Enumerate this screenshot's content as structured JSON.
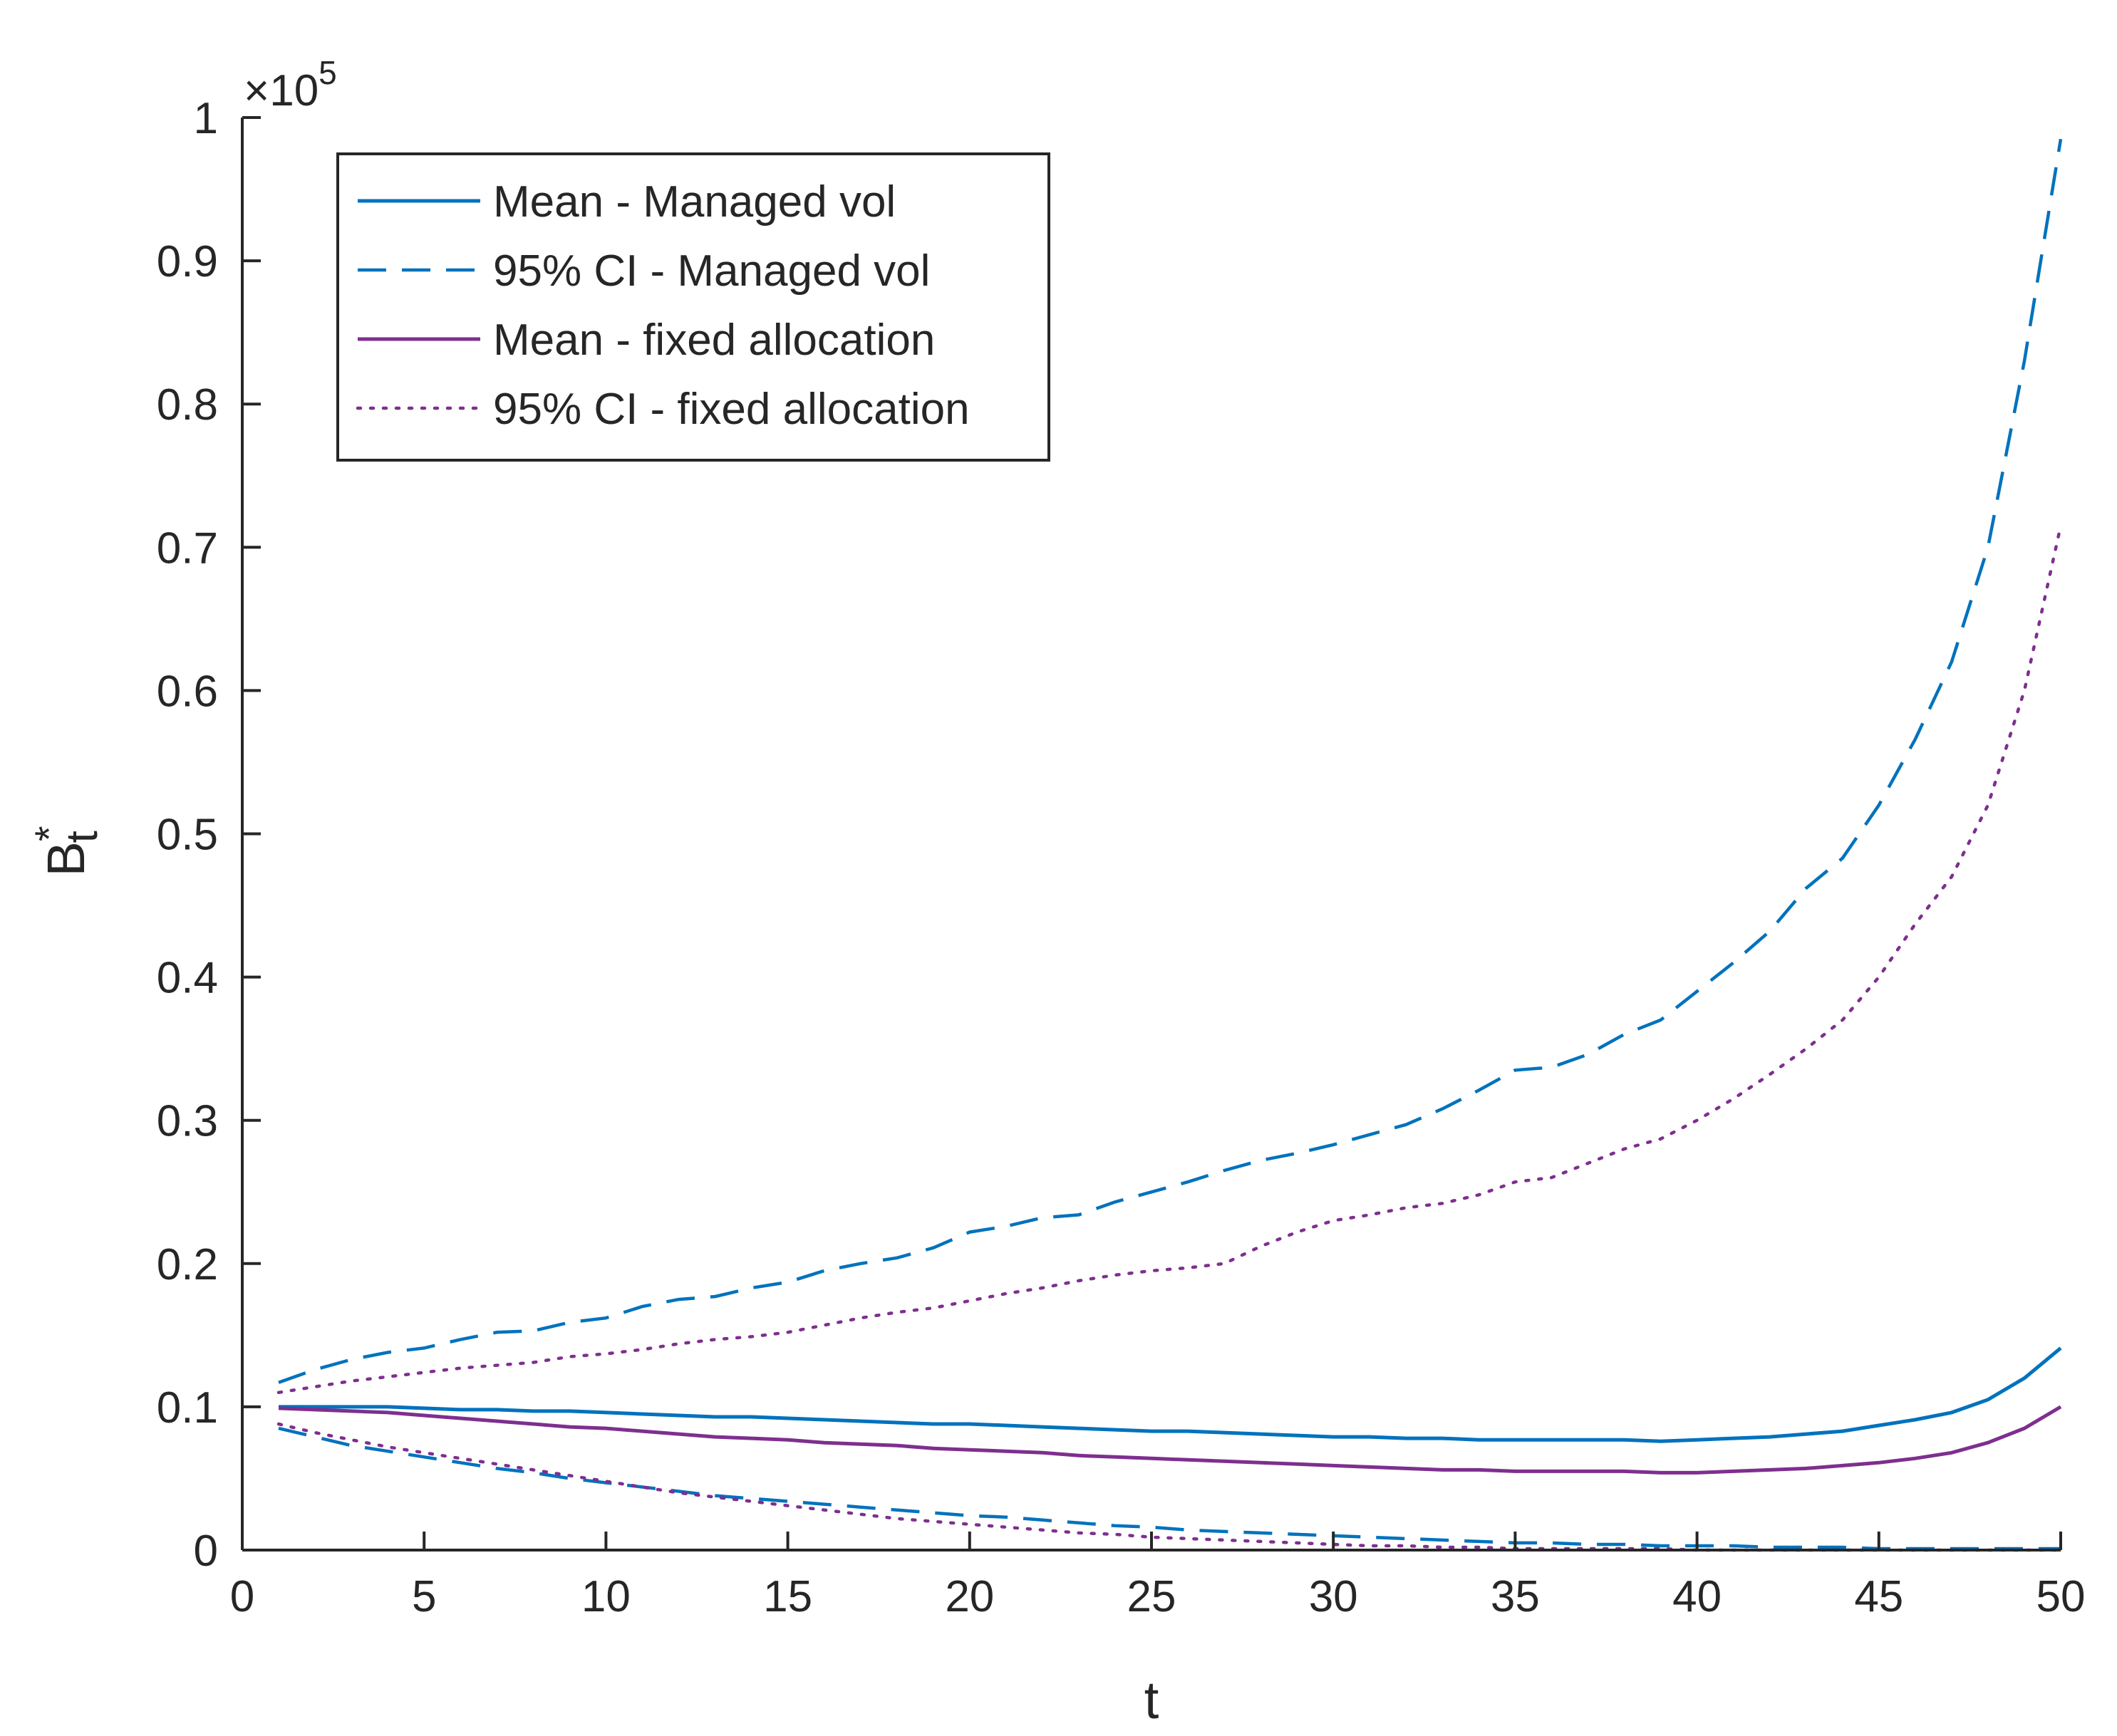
{
  "chart_data": {
    "type": "line",
    "title": "",
    "xlabel": "t",
    "ylabel": "B",
    "ylabel_superscript": "*",
    "ylabel_subscript": "t",
    "y_exponent": {
      "times": "×10",
      "power": "5"
    },
    "xlim": [
      0,
      50
    ],
    "ylim": [
      0,
      1
    ],
    "x_ticks": [
      0,
      5,
      10,
      15,
      20,
      25,
      30,
      35,
      40,
      45,
      50
    ],
    "x_tick_labels": [
      "0",
      "5",
      "10",
      "15",
      "20",
      "25",
      "30",
      "35",
      "40",
      "45",
      "50"
    ],
    "y_ticks": [
      0,
      0.1,
      0.2,
      0.3,
      0.4,
      0.5,
      0.6,
      0.7,
      0.8,
      0.9,
      1
    ],
    "y_tick_labels": [
      "0",
      "0.1",
      "0.2",
      "0.3",
      "0.4",
      "0.5",
      "0.6",
      "0.7",
      "0.8",
      "0.9",
      "1"
    ],
    "grid": false,
    "legend_position": "top-left",
    "x": [
      1,
      2,
      3,
      4,
      5,
      6,
      7,
      8,
      9,
      10,
      11,
      12,
      13,
      14,
      15,
      16,
      17,
      18,
      19,
      20,
      21,
      22,
      23,
      24,
      25,
      26,
      27,
      28,
      29,
      30,
      31,
      32,
      33,
      34,
      35,
      36,
      37,
      38,
      39,
      40,
      41,
      42,
      43,
      44,
      45,
      46,
      47,
      48,
      49,
      50
    ],
    "series": [
      {
        "name": "Mean - Managed vol",
        "color": "#0072BD",
        "style": "solid",
        "values": [
          0.1,
          0.1,
          0.1,
          0.1,
          0.099,
          0.098,
          0.098,
          0.097,
          0.097,
          0.096,
          0.095,
          0.094,
          0.093,
          0.093,
          0.092,
          0.091,
          0.09,
          0.089,
          0.088,
          0.088,
          0.087,
          0.086,
          0.085,
          0.084,
          0.083,
          0.083,
          0.082,
          0.081,
          0.08,
          0.079,
          0.079,
          0.078,
          0.078,
          0.077,
          0.077,
          0.077,
          0.077,
          0.077,
          0.076,
          0.077,
          0.078,
          0.079,
          0.081,
          0.083,
          0.087,
          0.091,
          0.096,
          0.105,
          0.12,
          0.141
        ]
      },
      {
        "name": "95% CI - Managed vol",
        "color": "#0072BD",
        "style": "dashed",
        "values": [
          0.117,
          0.126,
          0.133,
          0.138,
          0.141,
          0.147,
          0.152,
          0.153,
          0.159,
          0.162,
          0.17,
          0.175,
          0.177,
          0.183,
          0.187,
          0.195,
          0.2,
          0.204,
          0.211,
          0.222,
          0.226,
          0.232,
          0.234,
          0.243,
          0.25,
          0.257,
          0.265,
          0.272,
          0.277,
          0.283,
          0.29,
          0.297,
          0.308,
          0.321,
          0.335,
          0.337,
          0.346,
          0.36,
          0.37,
          0.39,
          0.41,
          0.432,
          0.462,
          0.483,
          0.52,
          0.566,
          0.62,
          0.7,
          0.83,
          0.985
        ]
      },
      {
        "name": "Mean - fixed allocation",
        "color": "#7E2F8E",
        "style": "solid",
        "values": [
          0.099,
          0.098,
          0.097,
          0.096,
          0.094,
          0.092,
          0.09,
          0.088,
          0.086,
          0.085,
          0.083,
          0.081,
          0.079,
          0.078,
          0.077,
          0.075,
          0.074,
          0.073,
          0.071,
          0.07,
          0.069,
          0.068,
          0.066,
          0.065,
          0.064,
          0.063,
          0.062,
          0.061,
          0.06,
          0.059,
          0.058,
          0.057,
          0.056,
          0.056,
          0.055,
          0.055,
          0.055,
          0.055,
          0.054,
          0.054,
          0.055,
          0.056,
          0.057,
          0.059,
          0.061,
          0.064,
          0.068,
          0.075,
          0.085,
          0.1
        ]
      },
      {
        "name": "95% CI - fixed allocation",
        "color": "#7E2F8E",
        "style": "dotted",
        "values": [
          0.11,
          0.114,
          0.118,
          0.121,
          0.124,
          0.127,
          0.129,
          0.131,
          0.135,
          0.137,
          0.14,
          0.144,
          0.147,
          0.149,
          0.152,
          0.157,
          0.162,
          0.166,
          0.169,
          0.174,
          0.179,
          0.183,
          0.188,
          0.192,
          0.195,
          0.197,
          0.2,
          0.212,
          0.222,
          0.23,
          0.234,
          0.239,
          0.242,
          0.248,
          0.257,
          0.26,
          0.27,
          0.28,
          0.287,
          0.3,
          0.315,
          0.332,
          0.35,
          0.37,
          0.4,
          0.437,
          0.47,
          0.52,
          0.6,
          0.715
        ]
      },
      {
        "name": "",
        "color": "#0072BD",
        "style": "dashed",
        "values": [
          0.085,
          0.079,
          0.073,
          0.069,
          0.065,
          0.061,
          0.057,
          0.054,
          0.05,
          0.047,
          0.044,
          0.041,
          0.038,
          0.036,
          0.034,
          0.032,
          0.03,
          0.028,
          0.026,
          0.024,
          0.023,
          0.021,
          0.019,
          0.017,
          0.016,
          0.014,
          0.013,
          0.012,
          0.011,
          0.01,
          0.009,
          0.008,
          0.007,
          0.006,
          0.005,
          0.005,
          0.004,
          0.004,
          0.003,
          0.003,
          0.003,
          0.002,
          0.002,
          0.002,
          0.001,
          0.001,
          0.001,
          0.001,
          0.001,
          0.001
        ]
      },
      {
        "name": "",
        "color": "#7E2F8E",
        "style": "dotted",
        "values": [
          0.088,
          0.082,
          0.077,
          0.072,
          0.068,
          0.064,
          0.06,
          0.056,
          0.052,
          0.048,
          0.044,
          0.04,
          0.037,
          0.034,
          0.031,
          0.028,
          0.025,
          0.022,
          0.02,
          0.018,
          0.016,
          0.014,
          0.012,
          0.011,
          0.009,
          0.008,
          0.007,
          0.006,
          0.005,
          0.004,
          0.003,
          0.003,
          0.002,
          0.002,
          0.001,
          0.001,
          0.001,
          0.001,
          0.001,
          0,
          0,
          0,
          0,
          0,
          0,
          0,
          0,
          0,
          0,
          0
        ]
      }
    ]
  }
}
